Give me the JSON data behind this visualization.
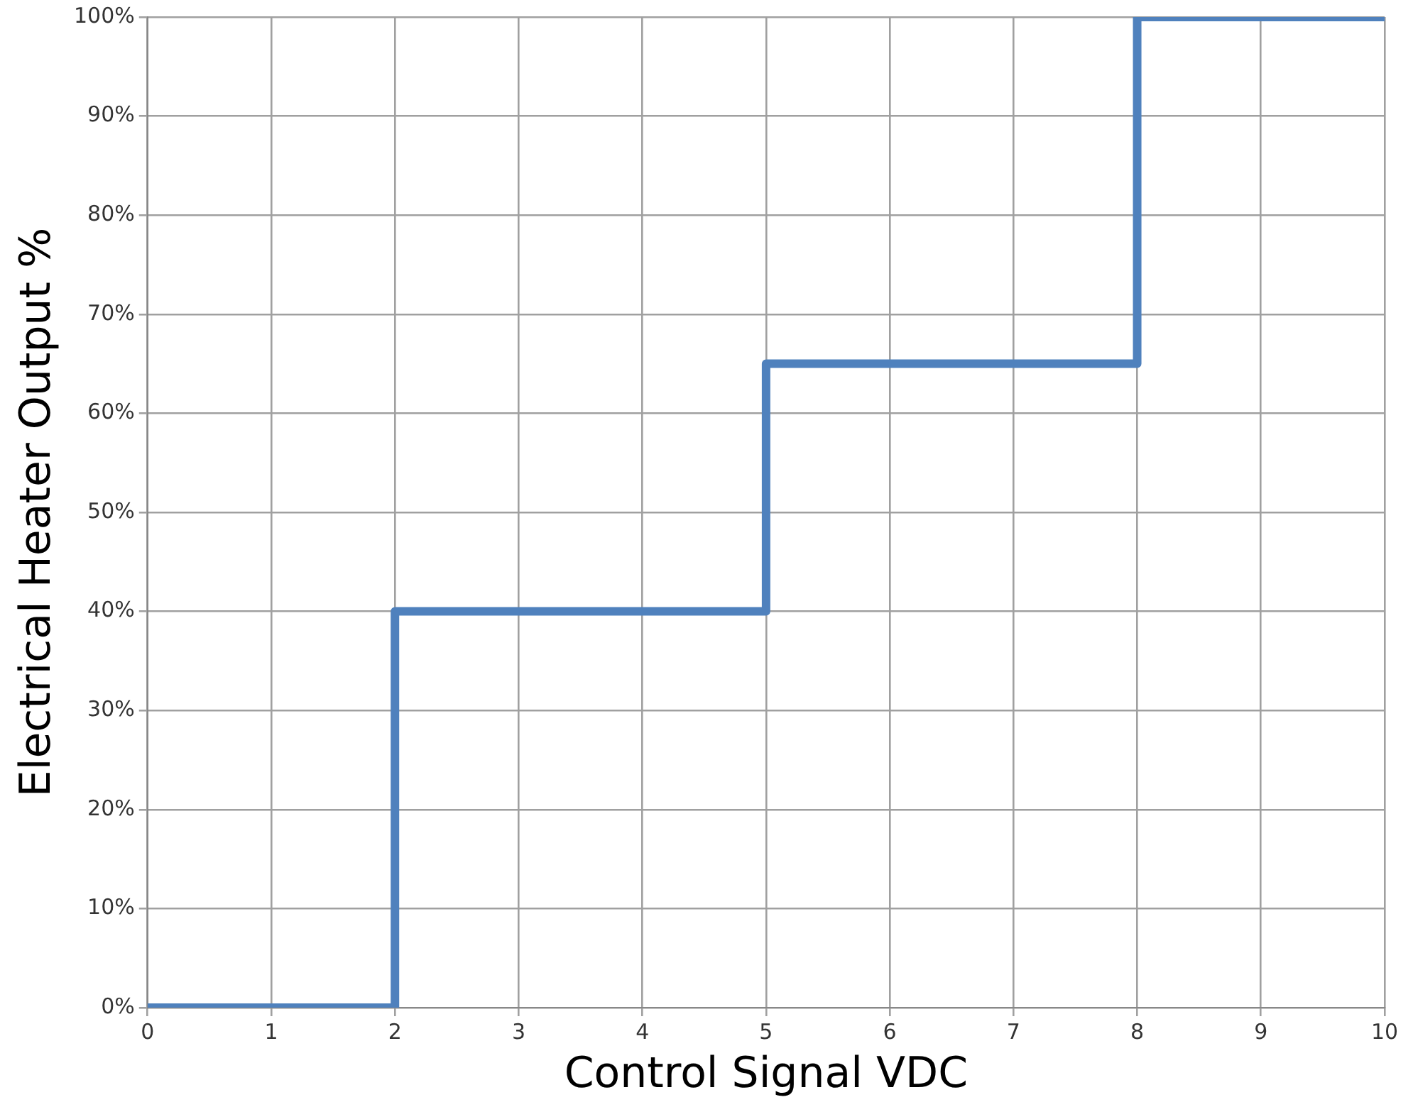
{
  "chart_data": {
    "type": "step",
    "xlabel": "Control Signal VDC",
    "ylabel": "Electrical Heater Output %",
    "x": [
      0,
      2,
      5,
      8,
      10
    ],
    "series": [
      {
        "color": "#4f81bd",
        "values": [
          0,
          40,
          65,
          100,
          100
        ]
      }
    ],
    "xlim": [
      0,
      10
    ],
    "xticks": [
      0,
      1,
      2,
      3,
      4,
      5,
      6,
      7,
      8,
      9,
      10
    ],
    "ylim": [
      0,
      100
    ],
    "yticks": [
      {
        "value": 0,
        "label": "0%"
      },
      {
        "value": 10,
        "label": "10%"
      },
      {
        "value": 20,
        "label": "20%"
      },
      {
        "value": 30,
        "label": "30%"
      },
      {
        "value": 40,
        "label": "40%"
      },
      {
        "value": 50,
        "label": "50%"
      },
      {
        "value": 60,
        "label": "60%"
      },
      {
        "value": 70,
        "label": "70%"
      },
      {
        "value": 80,
        "label": "80%"
      },
      {
        "value": 90,
        "label": "90%"
      },
      {
        "value": 100,
        "label": "100%"
      }
    ],
    "grid": true,
    "legend": false,
    "marker": "none",
    "line_style": "solid"
  }
}
